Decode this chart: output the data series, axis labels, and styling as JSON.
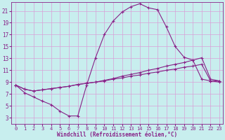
{
  "xlabel": "Windchill (Refroidissement éolien,°C)",
  "bg_color": "#c8eeee",
  "grid_color": "#d8a0d8",
  "line_color": "#882288",
  "xlim_min": -0.5,
  "xlim_max": 23.4,
  "ylim_min": 2.0,
  "ylim_max": 22.5,
  "xticks": [
    0,
    1,
    2,
    3,
    4,
    5,
    6,
    7,
    8,
    9,
    10,
    11,
    12,
    13,
    14,
    15,
    16,
    17,
    18,
    19,
    20,
    21,
    22,
    23
  ],
  "yticks": [
    3,
    5,
    7,
    9,
    11,
    13,
    15,
    17,
    19,
    21
  ],
  "curve1_x": [
    0,
    1,
    2,
    3,
    4,
    5,
    6,
    7,
    8,
    9,
    10,
    11,
    12,
    13,
    14,
    15,
    16,
    17,
    18,
    19,
    20,
    21,
    22,
    23
  ],
  "curve1_y": [
    8.5,
    7.2,
    6.5,
    5.8,
    5.2,
    4.1,
    3.3,
    3.3,
    8.5,
    13.1,
    17.0,
    19.3,
    20.8,
    21.7,
    22.2,
    21.5,
    21.2,
    18.3,
    15.0,
    13.2,
    12.7,
    9.5,
    9.2,
    9.2
  ],
  "curve2_x": [
    0,
    1,
    2,
    3,
    4,
    5,
    6,
    7,
    8,
    9,
    10,
    11,
    12,
    13,
    14,
    15,
    16,
    17,
    18,
    19,
    20,
    21,
    22,
    23
  ],
  "curve2_y": [
    8.5,
    7.8,
    7.5,
    7.7,
    7.9,
    8.1,
    8.3,
    8.6,
    8.8,
    9.0,
    9.3,
    9.6,
    10.0,
    10.3,
    10.6,
    11.0,
    11.3,
    11.7,
    12.0,
    12.3,
    12.7,
    13.1,
    9.5,
    9.2
  ],
  "curve3_x": [
    0,
    1,
    2,
    3,
    4,
    5,
    6,
    7,
    8,
    9,
    10,
    11,
    12,
    13,
    14,
    15,
    16,
    17,
    18,
    19,
    20,
    21,
    22,
    23
  ],
  "curve3_y": [
    8.5,
    7.8,
    7.5,
    7.7,
    7.9,
    8.1,
    8.3,
    8.6,
    8.8,
    9.0,
    9.2,
    9.5,
    9.7,
    10.0,
    10.2,
    10.5,
    10.7,
    11.0,
    11.2,
    11.5,
    11.7,
    12.0,
    9.2,
    9.0
  ],
  "tick_fontsize": 5.0,
  "xlabel_fontsize": 5.5
}
